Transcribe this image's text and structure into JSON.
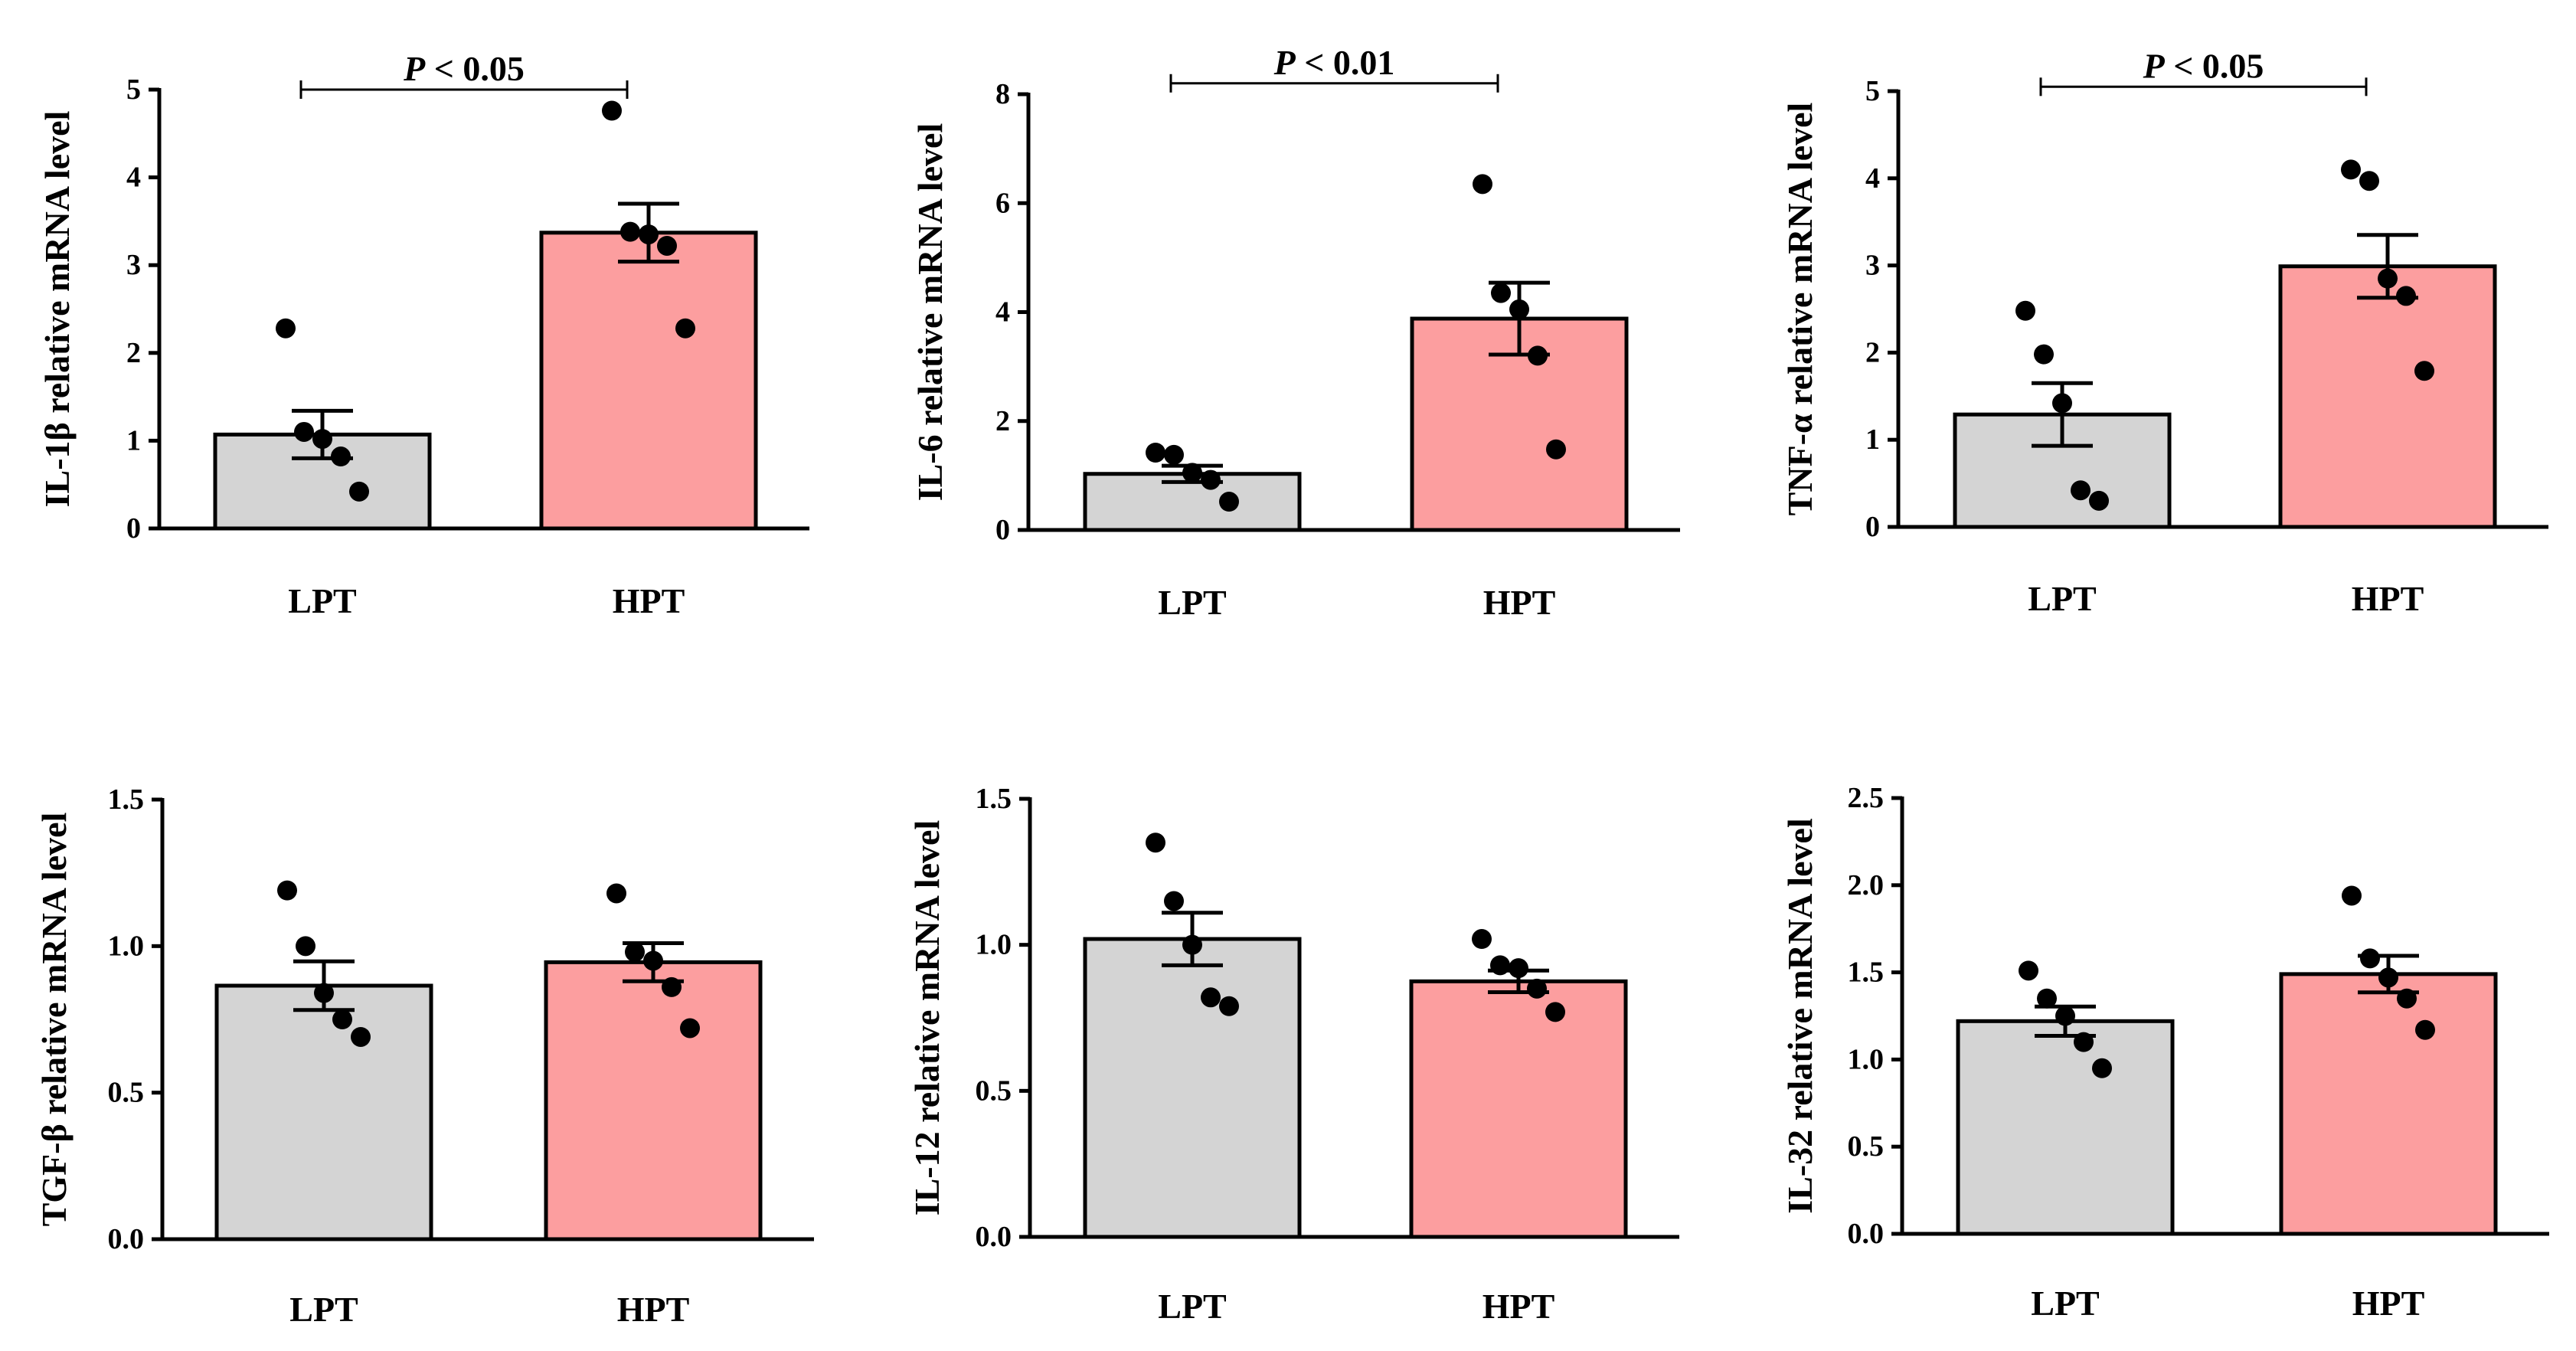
{
  "figure": {
    "categories": [
      "LPT",
      "HPT"
    ],
    "colors": {
      "LPT": "#d4d4d4",
      "HPT": "#fc9e9f",
      "axis": "#000000",
      "point": "#000000"
    }
  },
  "chart_data": [
    {
      "type": "bar",
      "ylabel": "IL-1β relative mRNA level",
      "categories": [
        "LPT",
        "HPT"
      ],
      "ylim": [
        0,
        5
      ],
      "yticks": [
        0,
        1,
        2,
        3,
        4,
        5
      ],
      "ytick_labels": [
        "0",
        "1",
        "2",
        "3",
        "4",
        "5"
      ],
      "values": [
        1.07,
        3.37
      ],
      "sem": [
        0.27,
        0.33
      ],
      "points": [
        [
          2.28,
          1.1,
          1.02,
          0.82,
          0.42
        ],
        [
          4.76,
          3.38,
          3.35,
          3.22,
          2.28
        ]
      ],
      "annotation": {
        "label": "P",
        "relation": " < ",
        "value": "0.05",
        "level": 5.0
      }
    },
    {
      "type": "bar",
      "ylabel": "IL-6 relative mRNA level",
      "categories": [
        "LPT",
        "HPT"
      ],
      "ylim": [
        0,
        8
      ],
      "yticks": [
        0,
        2,
        4,
        6,
        8
      ],
      "ytick_labels": [
        "0",
        "2",
        "4",
        "6",
        "8"
      ],
      "values": [
        1.03,
        3.88
      ],
      "sem": [
        0.15,
        0.66
      ],
      "points": [
        [
          1.42,
          1.38,
          1.05,
          0.92,
          0.52
        ],
        [
          6.35,
          4.35,
          4.05,
          3.2,
          1.48
        ]
      ],
      "annotation": {
        "label": "P",
        "relation": " < ",
        "value": "0.01",
        "level": 8.2
      }
    },
    {
      "type": "bar",
      "ylabel": "TNF-α relative mRNA level",
      "categories": [
        "LPT",
        "HPT"
      ],
      "ylim": [
        0,
        5
      ],
      "yticks": [
        0,
        1,
        2,
        3,
        4,
        5
      ],
      "ytick_labels": [
        "0",
        "1",
        "2",
        "3",
        "4",
        "5"
      ],
      "values": [
        1.29,
        2.99
      ],
      "sem": [
        0.36,
        0.36
      ],
      "points": [
        [
          2.48,
          1.98,
          1.42,
          0.42,
          0.3
        ],
        [
          4.1,
          3.97,
          2.85,
          2.65,
          1.79
        ]
      ],
      "annotation": {
        "label": "P",
        "relation": " < ",
        "value": "0.05",
        "level": 5.05
      }
    },
    {
      "type": "bar",
      "ylabel": "TGF-β relative mRNA level",
      "categories": [
        "LPT",
        "HPT"
      ],
      "ylim": [
        0,
        1.5
      ],
      "yticks": [
        0.0,
        0.5,
        1.0,
        1.5
      ],
      "ytick_labels": [
        "0.0",
        "0.5",
        "1.0",
        "1.5"
      ],
      "values": [
        0.865,
        0.945
      ],
      "sem": [
        0.083,
        0.065
      ],
      "points": [
        [
          1.19,
          1.0,
          0.84,
          0.75,
          0.69
        ],
        [
          1.18,
          0.98,
          0.95,
          0.86,
          0.72
        ]
      ],
      "annotation": null
    },
    {
      "type": "bar",
      "ylabel": "IL-12 relative mRNA level",
      "categories": [
        "LPT",
        "HPT"
      ],
      "ylim": [
        0,
        1.5
      ],
      "yticks": [
        0.0,
        0.5,
        1.0,
        1.5
      ],
      "ytick_labels": [
        "0.0",
        "0.5",
        "1.0",
        "1.5"
      ],
      "values": [
        1.02,
        0.875
      ],
      "sem": [
        0.09,
        0.037
      ],
      "points": [
        [
          1.35,
          1.15,
          1.0,
          0.82,
          0.79
        ],
        [
          1.02,
          0.93,
          0.92,
          0.85,
          0.77
        ]
      ],
      "annotation": null
    },
    {
      "type": "bar",
      "ylabel": "IL-32 relative mRNA level",
      "categories": [
        "LPT",
        "HPT"
      ],
      "ylim": [
        0,
        2.5
      ],
      "yticks": [
        0.0,
        0.5,
        1.0,
        1.5,
        2.0,
        2.5
      ],
      "ytick_labels": [
        "0.0",
        "0.5",
        "1.0",
        "1.5",
        "2.0",
        "2.5"
      ],
      "values": [
        1.22,
        1.49
      ],
      "sem": [
        0.084,
        0.105
      ],
      "points": [
        [
          1.51,
          1.35,
          1.25,
          1.1,
          0.95
        ],
        [
          1.94,
          1.58,
          1.47,
          1.35,
          1.17
        ]
      ],
      "annotation": null
    }
  ]
}
